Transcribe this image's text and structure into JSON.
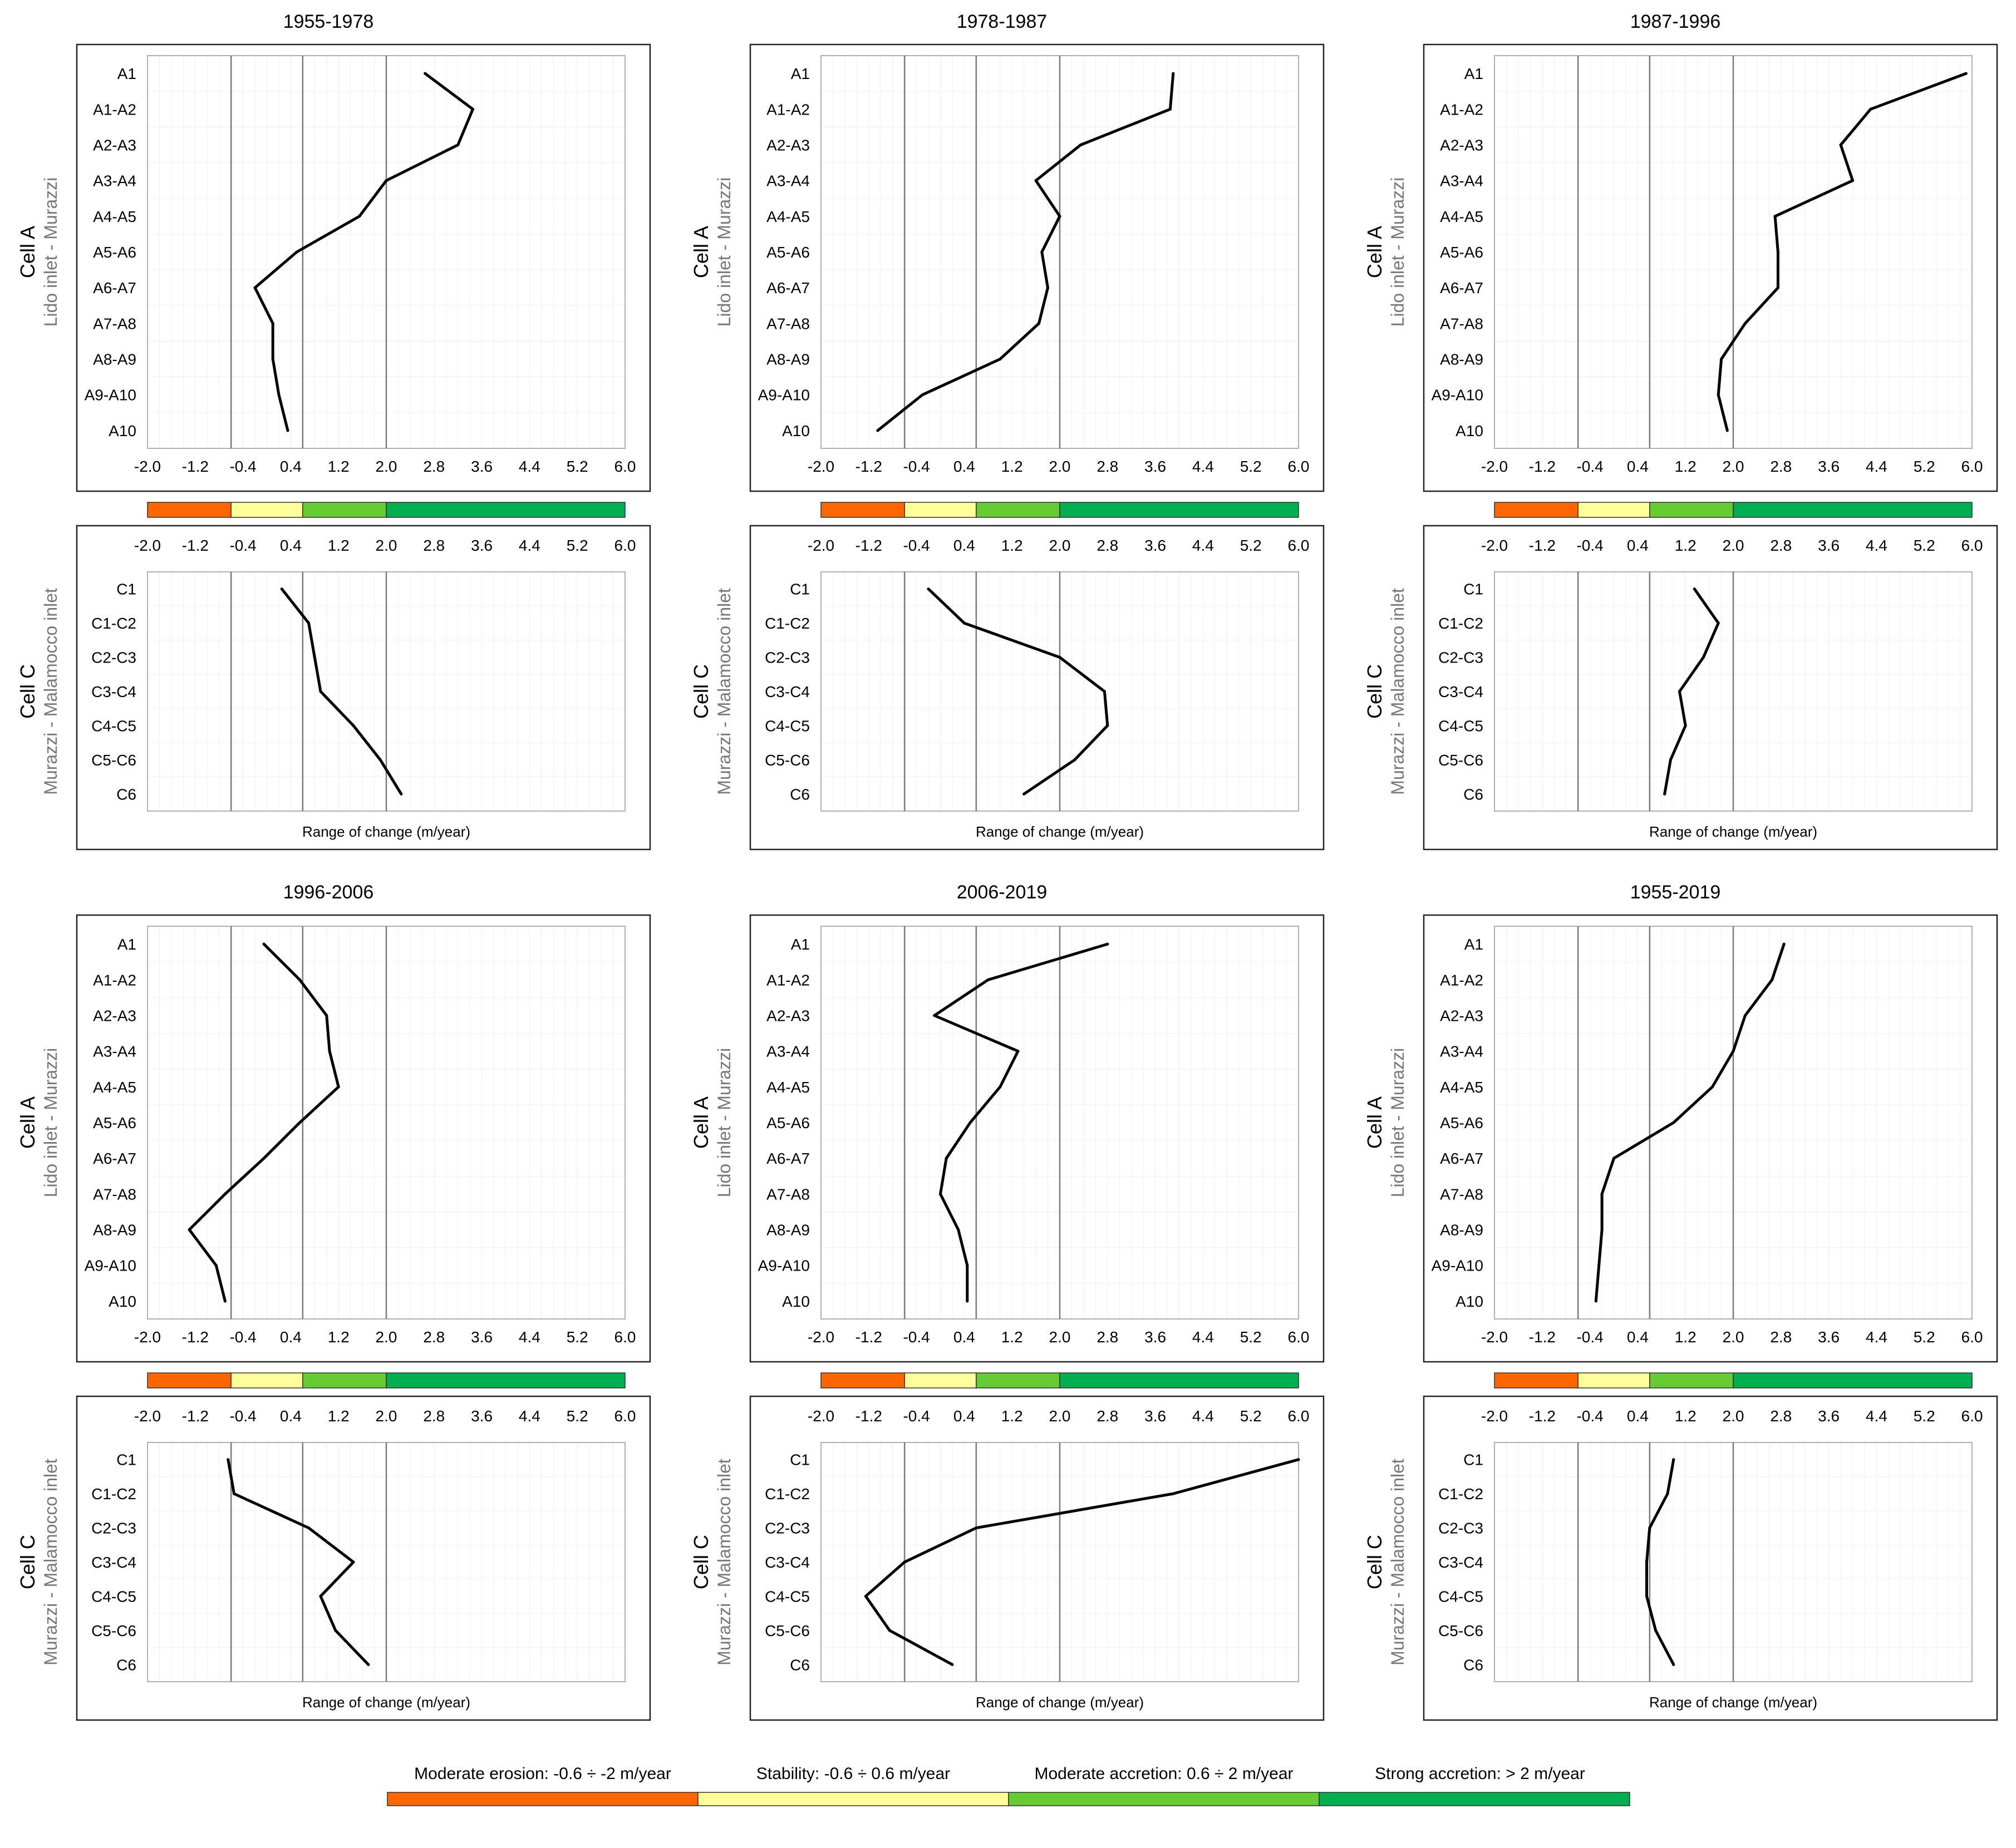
{
  "scale": {
    "colors": [
      "#ff6600",
      "#ffff99",
      "#66cc33",
      "#00b050"
    ],
    "bounds": [
      -2.0,
      -0.6,
      0.6,
      2.0,
      6.0
    ],
    "ticks": [
      "-2.0",
      "-1.2",
      "-0.4",
      "0.4",
      "1.2",
      "2.0",
      "2.8",
      "3.6",
      "4.4",
      "5.2",
      "6.0"
    ],
    "xlim": [
      -2.0,
      6.0
    ],
    "vlines": [
      -0.6,
      0.6,
      2.0
    ]
  },
  "legend": {
    "items": [
      {
        "label": "Moderate erosion: -0.6 ÷ -2 m/year",
        "color": "#ff6600"
      },
      {
        "label": "Stability: -0.6 ÷ 0.6 m/year",
        "color": "#ffff99"
      },
      {
        "label": "Moderate accretion: 0.6 ÷ 2 m/year",
        "color": "#66cc33"
      },
      {
        "label": "Strong accretion: > 2 m/year",
        "color": "#00b050"
      }
    ]
  },
  "chart_data": [
    {
      "title": "1955-1978",
      "cellA": {
        "type": "line",
        "ylabel": "Cell A",
        "sublabel": "Lido inlet - Murazzi",
        "categories": [
          "A1",
          "A1-A2",
          "A2-A3",
          "A3-A4",
          "A4-A5",
          "A5-A6",
          "A6-A7",
          "A7-A8",
          "A8-A9",
          "A9-A10",
          "A10"
        ],
        "values": [
          2.65,
          3.45,
          3.2,
          2.0,
          1.55,
          0.5,
          -0.2,
          0.1,
          0.1,
          0.2,
          0.35
        ],
        "xlim": [
          -2.0,
          6.0
        ]
      },
      "cellC": {
        "type": "line",
        "ylabel": "Cell C",
        "sublabel": "Murazzi - Malamocco inlet",
        "categories": [
          "C1",
          "C1-C2",
          "C2-C3",
          "C3-C4",
          "C4-C5",
          "C5-C6",
          "C6"
        ],
        "values": [
          0.25,
          0.7,
          0.8,
          0.9,
          1.45,
          1.9,
          2.25
        ],
        "xlim": [
          -2.0,
          6.0
        ],
        "xlabel": "Range of change (m/year)"
      }
    },
    {
      "title": "1978-1987",
      "cellA": {
        "type": "line",
        "ylabel": "Cell A",
        "sublabel": "Lido inlet - Murazzi",
        "categories": [
          "A1",
          "A1-A2",
          "A2-A3",
          "A3-A4",
          "A4-A5",
          "A5-A6",
          "A6-A7",
          "A7-A8",
          "A8-A9",
          "A9-A10",
          "A10"
        ],
        "values": [
          3.9,
          3.85,
          2.35,
          1.6,
          2.0,
          1.7,
          1.8,
          1.65,
          1.0,
          -0.3,
          -1.05
        ],
        "xlim": [
          -2.0,
          6.0
        ]
      },
      "cellC": {
        "type": "line",
        "ylabel": "Cell C",
        "sublabel": "Murazzi - Malamocco inlet",
        "categories": [
          "C1",
          "C1-C2",
          "C2-C3",
          "C3-C4",
          "C4-C5",
          "C5-C6",
          "C6"
        ],
        "values": [
          -0.2,
          0.4,
          2.0,
          2.75,
          2.8,
          2.25,
          1.4
        ],
        "xlim": [
          -2.0,
          6.0
        ],
        "xlabel": "Range of change (m/year)"
      }
    },
    {
      "title": "1987-1996",
      "cellA": {
        "type": "line",
        "ylabel": "Cell A",
        "sublabel": "Lido inlet - Murazzi",
        "categories": [
          "A1",
          "A1-A2",
          "A2-A3",
          "A3-A4",
          "A4-A5",
          "A5-A6",
          "A6-A7",
          "A7-A8",
          "A8-A9",
          "A9-A10",
          "A10"
        ],
        "values": [
          5.9,
          4.3,
          3.8,
          4.0,
          2.7,
          2.75,
          2.75,
          2.2,
          1.8,
          1.75,
          1.9
        ],
        "xlim": [
          -2.0,
          6.0
        ]
      },
      "cellC": {
        "type": "line",
        "ylabel": "Cell C",
        "sublabel": "Murazzi - Malamocco inlet",
        "categories": [
          "C1",
          "C1-C2",
          "C2-C3",
          "C3-C4",
          "C4-C5",
          "C5-C6",
          "C6"
        ],
        "values": [
          1.35,
          1.75,
          1.5,
          1.1,
          1.2,
          0.95,
          0.85
        ],
        "xlim": [
          -2.0,
          6.0
        ],
        "xlabel": "Range of change (m/year)"
      }
    },
    {
      "title": "1996-2006",
      "cellA": {
        "type": "line",
        "ylabel": "Cell A",
        "sublabel": "Lido inlet - Murazzi",
        "categories": [
          "A1",
          "A1-A2",
          "A2-A3",
          "A3-A4",
          "A4-A5",
          "A5-A6",
          "A6-A7",
          "A7-A8",
          "A8-A9",
          "A9-A10",
          "A10"
        ],
        "values": [
          -0.05,
          0.55,
          1.0,
          1.05,
          1.2,
          0.55,
          -0.05,
          -0.7,
          -1.3,
          -0.85,
          -0.7
        ],
        "xlim": [
          -2.0,
          6.0
        ]
      },
      "cellC": {
        "type": "line",
        "ylabel": "Cell C",
        "sublabel": "Murazzi - Malamocco inlet",
        "categories": [
          "C1",
          "C1-C2",
          "C2-C3",
          "C3-C4",
          "C4-C5",
          "C5-C6",
          "C6"
        ],
        "values": [
          -0.65,
          -0.55,
          0.7,
          1.45,
          0.9,
          1.15,
          1.7
        ],
        "xlim": [
          -2.0,
          6.0
        ],
        "xlabel": "Range of change (m/year)"
      }
    },
    {
      "title": "2006-2019",
      "cellA": {
        "type": "line",
        "ylabel": "Cell A",
        "sublabel": "Lido inlet - Murazzi",
        "categories": [
          "A1",
          "A1-A2",
          "A2-A3",
          "A3-A4",
          "A4-A5",
          "A5-A6",
          "A6-A7",
          "A7-A8",
          "A8-A9",
          "A9-A10",
          "A10"
        ],
        "values": [
          2.8,
          0.8,
          -0.1,
          1.3,
          1.0,
          0.5,
          0.1,
          0.0,
          0.3,
          0.45,
          0.45
        ],
        "xlim": [
          -2.0,
          6.0
        ]
      },
      "cellC": {
        "type": "line",
        "ylabel": "Cell C",
        "sublabel": "Murazzi - Malamocco inlet",
        "categories": [
          "C1",
          "C1-C2",
          "C2-C3",
          "C3-C4",
          "C4-C5",
          "C5-C6",
          "C6"
        ],
        "values": [
          6.0,
          3.9,
          0.6,
          -0.6,
          -1.25,
          -0.85,
          0.2
        ],
        "xlim": [
          -2.0,
          6.0
        ],
        "xlabel": "Range of change (m/year)"
      }
    },
    {
      "title": "1955-2019",
      "cellA": {
        "type": "line",
        "ylabel": "Cell A",
        "sublabel": "Lido inlet - Murazzi",
        "categories": [
          "A1",
          "A1-A2",
          "A2-A3",
          "A3-A4",
          "A4-A5",
          "A5-A6",
          "A6-A7",
          "A7-A8",
          "A8-A9",
          "A9-A10",
          "A10"
        ],
        "values": [
          2.85,
          2.65,
          2.2,
          2.0,
          1.65,
          1.0,
          0.0,
          -0.2,
          -0.2,
          -0.25,
          -0.3
        ],
        "xlim": [
          -2.0,
          6.0
        ]
      },
      "cellC": {
        "type": "line",
        "ylabel": "Cell C",
        "sublabel": "Murazzi - Malamocco inlet",
        "categories": [
          "C1",
          "C1-C2",
          "C2-C3",
          "C3-C4",
          "C4-C5",
          "C5-C6",
          "C6"
        ],
        "values": [
          1.0,
          0.9,
          0.6,
          0.55,
          0.55,
          0.7,
          1.0
        ],
        "xlim": [
          -2.0,
          6.0
        ],
        "xlabel": "Range of change (m/year)"
      }
    }
  ]
}
